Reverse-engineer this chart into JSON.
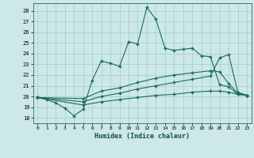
{
  "bg_color": "#cce8e8",
  "grid_color": "#aad0d0",
  "line_color": "#1a6b5a",
  "xlabel": "Humidex (Indice chaleur)",
  "xlim": [
    -0.5,
    23.5
  ],
  "ylim": [
    17.5,
    28.7
  ],
  "yticks": [
    18,
    19,
    20,
    21,
    22,
    23,
    24,
    25,
    26,
    27,
    28
  ],
  "series": [
    {
      "x": [
        0,
        1,
        2,
        3,
        4,
        5,
        6,
        7,
        8,
        9,
        10,
        11,
        12,
        13,
        14,
        15,
        16,
        17,
        18,
        19,
        20,
        21,
        22,
        23
      ],
      "y": [
        19.9,
        19.7,
        19.4,
        18.9,
        18.2,
        18.8,
        21.5,
        23.3,
        23.1,
        22.8,
        25.1,
        24.9,
        28.3,
        27.2,
        24.5,
        24.3,
        24.4,
        24.5,
        23.8,
        23.7,
        21.1,
        20.9,
        20.2,
        20.1
      ]
    },
    {
      "x": [
        0,
        5,
        7,
        9,
        11,
        13,
        15,
        17,
        19,
        20,
        21,
        22,
        23
      ],
      "y": [
        19.9,
        19.8,
        20.5,
        20.8,
        21.3,
        21.7,
        22.0,
        22.2,
        22.4,
        22.3,
        21.2,
        20.3,
        20.1
      ]
    },
    {
      "x": [
        0,
        5,
        7,
        9,
        11,
        13,
        15,
        17,
        19,
        20,
        21,
        22,
        23
      ],
      "y": [
        19.9,
        19.5,
        20.0,
        20.3,
        20.7,
        21.0,
        21.3,
        21.6,
        21.9,
        23.6,
        23.9,
        20.4,
        20.1
      ]
    },
    {
      "x": [
        0,
        5,
        7,
        9,
        11,
        13,
        15,
        17,
        19,
        20,
        21,
        22,
        23
      ],
      "y": [
        19.9,
        19.2,
        19.5,
        19.7,
        19.9,
        20.1,
        20.2,
        20.4,
        20.5,
        20.5,
        20.4,
        20.2,
        20.1
      ]
    }
  ]
}
